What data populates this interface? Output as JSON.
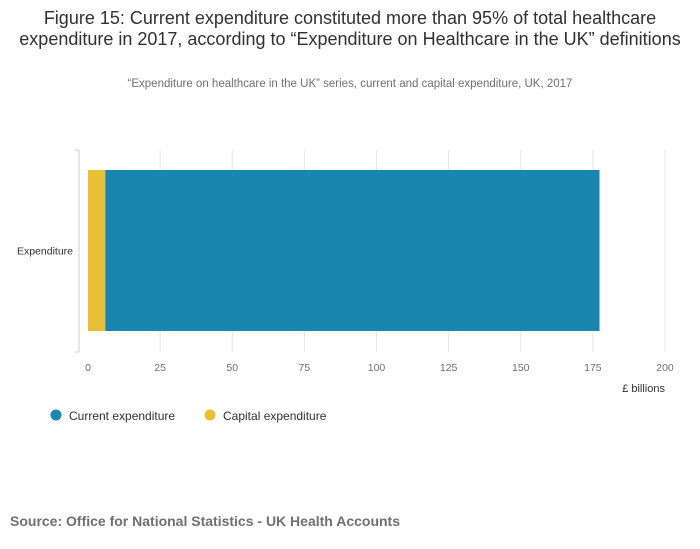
{
  "title": "Figure 15: Current expenditure constituted more than 95% of total healthcare expenditure in 2017, according to “Expenditure on Healthcare in the UK” definitions",
  "subtitle": "“Expenditure on healthcare in the UK” series, current and capital expenditure, UK, 2017",
  "source": "Source: Office for National Statistics - UK Health Accounts",
  "chart_data": {
    "type": "bar",
    "orientation": "horizontal",
    "stacked": true,
    "categories": [
      "Expenditure"
    ],
    "series": [
      {
        "name": "Capital expenditure",
        "values": [
          6
        ],
        "color": "#e8c036"
      },
      {
        "name": "Current expenditure",
        "values": [
          171.3
        ],
        "color": "#1a86b0"
      }
    ],
    "xlabel": "£ billions",
    "xlim": [
      0,
      200
    ],
    "xticks": [
      "0",
      "25",
      "50",
      "75",
      "100",
      "125",
      "150",
      "175",
      "200"
    ],
    "grid": true,
    "legend_position": "bottom-left",
    "legend": [
      {
        "name": "Current expenditure",
        "color": "#1a86b0"
      },
      {
        "name": "Capital expenditure",
        "color": "#e8c036"
      }
    ]
  }
}
